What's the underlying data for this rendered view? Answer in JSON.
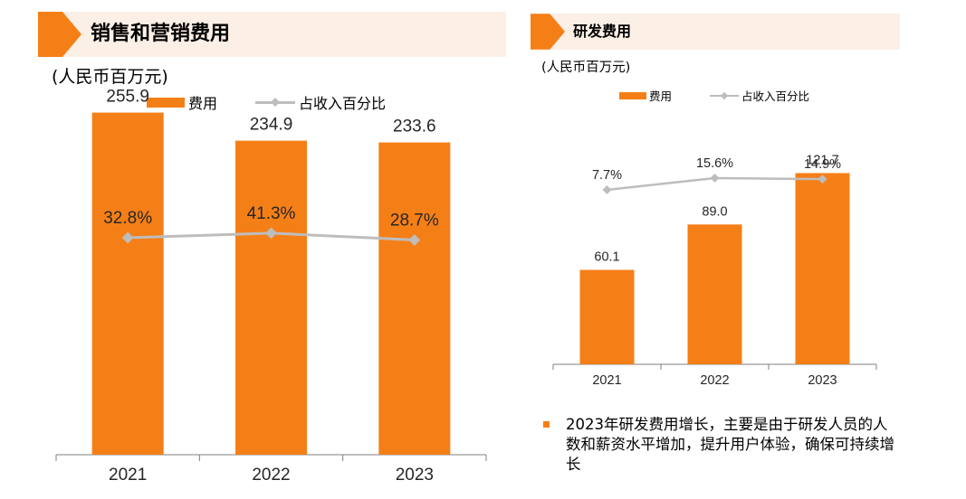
{
  "panels": {
    "sales": {
      "title": "销售和营销费用",
      "unit": "(人民币百万元)",
      "legend": {
        "bar": "费用",
        "line": "占收入百分比"
      }
    },
    "rd": {
      "title": "研发费用",
      "unit": "(人民币百万元)",
      "legend": {
        "bar": "费用",
        "line": "占收入百分比"
      },
      "note": "2023年研发费用增长，主要是由于研发人员的人数和薪资水平增加，提升用户体验，确保可持续增长"
    }
  },
  "colors": {
    "bar": "#f57f17",
    "line": "#bdbdbd",
    "title_bg": "#fcefe6"
  },
  "chart_data": [
    {
      "type": "bar",
      "title": "销售和营销费用",
      "ylabel": "(人民币百万元)",
      "categories": [
        "2021",
        "2022",
        "2023"
      ],
      "series": [
        {
          "name": "费用",
          "type": "bar",
          "values": [
            255.9,
            234.9,
            233.6
          ],
          "labels": [
            "255.9",
            "234.9",
            "233.6"
          ]
        },
        {
          "name": "占收入百分比",
          "type": "line",
          "values": [
            32.8,
            41.3,
            28.7
          ],
          "labels": [
            "32.8%",
            "41.3%",
            "28.7%"
          ]
        }
      ],
      "ylim": [
        0,
        330
      ],
      "grid": false,
      "legend": "top-left"
    },
    {
      "type": "bar",
      "title": "研发费用",
      "ylabel": "(人民币百万元)",
      "categories": [
        "2021",
        "2022",
        "2023"
      ],
      "series": [
        {
          "name": "费用",
          "type": "bar",
          "values": [
            60.1,
            89.0,
            121.7
          ],
          "labels": [
            "60.1",
            "89.0",
            "121.7"
          ]
        },
        {
          "name": "占收入百分比",
          "type": "line",
          "values": [
            7.7,
            15.6,
            14.9
          ],
          "labels": [
            "7.7%",
            "15.6%",
            "14.9%"
          ]
        }
      ],
      "ylim": [
        0,
        145
      ],
      "grid": false,
      "legend": "top-left"
    }
  ]
}
